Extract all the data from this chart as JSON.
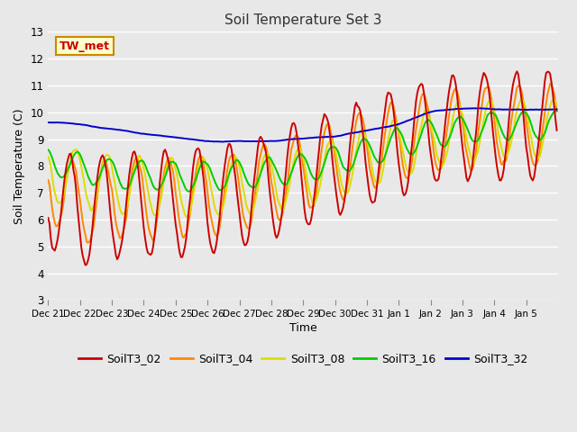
{
  "title": "Soil Temperature Set 3",
  "xlabel": "Time",
  "ylabel": "Soil Temperature (C)",
  "ylim": [
    3.0,
    13.0
  ],
  "yticks": [
    3.0,
    4.0,
    5.0,
    6.0,
    7.0,
    8.0,
    9.0,
    10.0,
    11.0,
    12.0,
    13.0
  ],
  "bg_color": "#e8e8e8",
  "plot_bg_color": "#e8e8e8",
  "annotation_text": "TW_met",
  "annotation_bg": "#ffffcc",
  "annotation_border": "#cc8800",
  "annotation_text_color": "#cc0000",
  "series_colors": {
    "SoilT3_02": "#cc0000",
    "SoilT3_04": "#ff8800",
    "SoilT3_08": "#dddd00",
    "SoilT3_16": "#00cc00",
    "SoilT3_32": "#0000cc"
  },
  "legend_colors": [
    "#cc0000",
    "#ff8800",
    "#dddd00",
    "#00cc00",
    "#0000cc"
  ],
  "legend_labels": [
    "SoilT3_02",
    "SoilT3_04",
    "SoilT3_08",
    "SoilT3_16",
    "SoilT3_32"
  ]
}
